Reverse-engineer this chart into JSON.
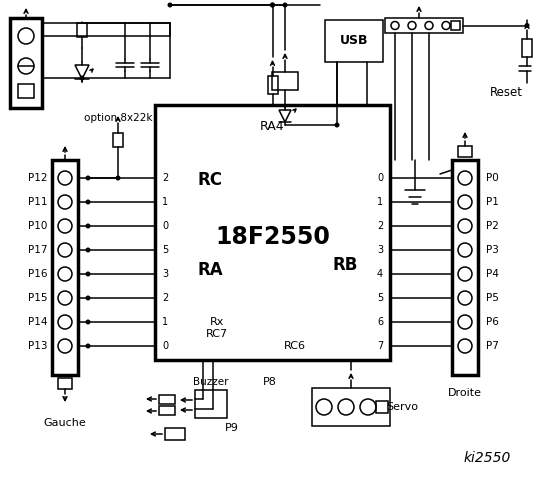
{
  "bg": "#ffffff",
  "chip_label": "18F2550",
  "chip_sub": "RA4",
  "rc_label": "RC",
  "ra_label": "RA",
  "rb_label": "RB",
  "left_pins": [
    "P12",
    "P11",
    "P10",
    "P17",
    "P16",
    "P15",
    "P14",
    "P13"
  ],
  "right_pins": [
    "P0",
    "P1",
    "P2",
    "P3",
    "P4",
    "P5",
    "P6",
    "P7"
  ],
  "rc_nums": [
    "2",
    "1",
    "0",
    "5",
    "3",
    "2",
    "1",
    "0"
  ],
  "rb_nums": [
    "0",
    "1",
    "2",
    "3",
    "4",
    "5",
    "6",
    "7"
  ],
  "gauche": "Gauche",
  "droite": "Droite",
  "option": "option 8x22k",
  "reset": "Reset",
  "usb": "USB",
  "buzzer": "Buzzer",
  "p9": "P9",
  "p8": "P8",
  "servo": "Servo",
  "ki": "ki2550",
  "rx": "Rx",
  "rc7": "RC7",
  "rc6": "RC6"
}
